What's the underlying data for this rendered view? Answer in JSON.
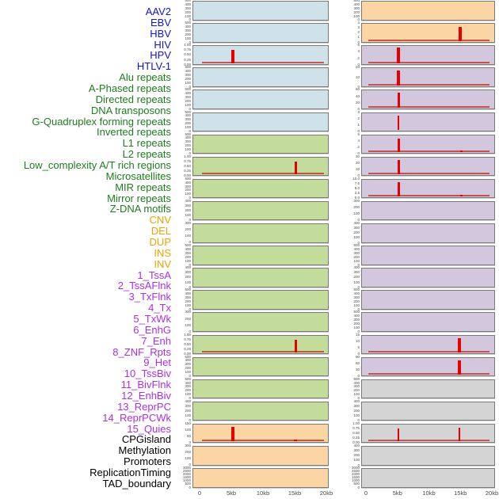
{
  "colors": {
    "panel_bg": {
      "virus": "#cfe2e9",
      "repeat": "#c3db9b",
      "sv": "#fcd5a5",
      "chromatin": "#d3c7de",
      "other": "#d4d4d4"
    },
    "label_text": {
      "virus": "#1414d6",
      "repeat": "#1e7d1e",
      "sv": "#efa300",
      "chromatin": "#aa2fe6",
      "other": "#000000"
    },
    "spike_red": "#e80000",
    "baseline_red": "#be3228",
    "panel_border": "#7a7a7a",
    "tick_text": "#4a4a4a"
  },
  "chart_data": {
    "type": "bar",
    "title": "",
    "xlabel": "",
    "ylabel": "",
    "x_range_kb": [
      0,
      20
    ],
    "x_ticks": [
      "0",
      "5kb",
      "10kb",
      "15kb",
      "20kb"
    ],
    "grid": false,
    "legend": "none",
    "layout": "22 rows x 2 columns, column-major; 44 feature labels stacked on the left",
    "columns": [
      {
        "panels": [
          {
            "label": "AAV2",
            "group": "virus",
            "yticks": [
              "500",
              "400",
              "300",
              "200",
              "100",
              "0"
            ],
            "spikes": [],
            "baseline": false
          },
          {
            "label": "EBV",
            "group": "virus",
            "yticks": [
              "500",
              "400",
              "300",
              "200",
              "100",
              "0"
            ],
            "spikes": [],
            "baseline": false
          },
          {
            "label": "HBV",
            "group": "virus",
            "yticks": [
              "1.00",
              "0.75",
              "0.50",
              "0.25",
              "0.00"
            ],
            "spikes": [
              {
                "kb": 5.2,
                "h": 0.8,
                "w": 4
              }
            ],
            "baseline": true
          },
          {
            "label": "HIV",
            "group": "virus",
            "yticks": [
              "500",
              "400",
              "300",
              "200",
              "100",
              "0"
            ],
            "spikes": [],
            "baseline": false
          },
          {
            "label": "HPV",
            "group": "virus",
            "yticks": [
              "500",
              "400",
              "300",
              "200",
              "100",
              "0"
            ],
            "spikes": [],
            "baseline": false
          },
          {
            "label": "HTLV-1",
            "group": "virus",
            "yticks": [
              "500",
              "400",
              "300",
              "200",
              "100",
              "0"
            ],
            "spikes": [],
            "baseline": false
          },
          {
            "label": "Alu repeats",
            "group": "repeat",
            "yticks": [
              "500",
              "400",
              "300",
              "200",
              "100",
              "0"
            ],
            "spikes": [],
            "baseline": false
          },
          {
            "label": "A-Phased repeats",
            "group": "repeat",
            "yticks": [
              "1.00",
              "0.75",
              "0.50",
              "0.25",
              "0.00"
            ],
            "spikes": [
              {
                "kb": 15.2,
                "h": 0.77,
                "w": 3
              }
            ],
            "baseline": true
          },
          {
            "label": "Directed repeats",
            "group": "repeat",
            "yticks": [
              "500",
              "400",
              "300",
              "200",
              "100",
              "0"
            ],
            "spikes": [],
            "baseline": false
          },
          {
            "label": "DNA transposons",
            "group": "repeat",
            "yticks": [
              "400",
              "300",
              "200",
              "100",
              "0"
            ],
            "spikes": [],
            "baseline": false
          },
          {
            "label": "G-Quadruplex forming repeats",
            "group": "repeat",
            "yticks": [
              "300",
              "200",
              "100",
              "0"
            ],
            "spikes": [],
            "baseline": false
          },
          {
            "label": "Inverted repeats",
            "group": "repeat",
            "yticks": [
              "500",
              "400",
              "300",
              "200",
              "100",
              "0"
            ],
            "spikes": [],
            "baseline": false
          },
          {
            "label": "L1 repeats",
            "group": "repeat",
            "yticks": [
              "400",
              "300",
              "200",
              "100",
              "0"
            ],
            "spikes": [],
            "baseline": false
          },
          {
            "label": "L2 repeats",
            "group": "repeat",
            "yticks": [
              "500",
              "400",
              "300",
              "200",
              "100",
              "0"
            ],
            "spikes": [],
            "baseline": false
          },
          {
            "label": "Low_complexity A/T rich regions",
            "group": "repeat",
            "yticks": [
              "300",
              "200",
              "100",
              "0"
            ],
            "spikes": [],
            "baseline": false
          },
          {
            "label": "Microsatellites",
            "group": "repeat",
            "yticks": [
              "1.00",
              "0.75",
              "0.50",
              "0.25",
              "0.00"
            ],
            "spikes": [
              {
                "kb": 15.2,
                "h": 0.8,
                "w": 3
              }
            ],
            "baseline": true
          },
          {
            "label": "MIR repeats",
            "group": "repeat",
            "yticks": [
              "500",
              "400",
              "300",
              "200",
              "100",
              "0"
            ],
            "spikes": [],
            "baseline": false
          },
          {
            "label": "Mirror repeats",
            "group": "repeat",
            "yticks": [
              "500",
              "400",
              "300",
              "200",
              "100",
              "0"
            ],
            "spikes": [],
            "baseline": false
          },
          {
            "label": "Z-DNA motifs",
            "group": "repeat",
            "yticks": [
              "400",
              "300",
              "200",
              "100",
              "0"
            ],
            "spikes": [],
            "baseline": false
          },
          {
            "label": "CNV",
            "group": "sv",
            "yticks": [
              "150",
              "100",
              "50",
              "0"
            ],
            "spikes": [
              {
                "kb": 5.2,
                "h": 0.88,
                "w": 4.5
              },
              {
                "kb": 15.2,
                "h": 0.14,
                "w": 4
              }
            ],
            "baseline": true
          },
          {
            "label": "DEL",
            "group": "sv",
            "yticks": [
              "300",
              "200",
              "100",
              "0"
            ],
            "spikes": [],
            "baseline": false
          },
          {
            "label": "DUP",
            "group": "sv",
            "yticks": [
              "3000",
              "2500",
              "2000",
              "1500",
              "1000",
              "500",
              "0"
            ],
            "spikes": [],
            "baseline": false
          }
        ]
      },
      {
        "panels": [
          {
            "label": "INS",
            "group": "sv",
            "yticks": [
              "500",
              "400",
              "300",
              "200",
              "100",
              "0"
            ],
            "spikes": [],
            "baseline": false
          },
          {
            "label": "INV",
            "group": "sv",
            "yticks": [
              "4",
              "3",
              "2",
              "1",
              "0"
            ],
            "spikes": [
              {
                "kb": 15.0,
                "h": 0.85,
                "w": 3.5
              }
            ],
            "baseline": true
          },
          {
            "label": "1_TssA",
            "group": "chromatin",
            "yticks": [
              "6",
              "4",
              "2",
              "0"
            ],
            "spikes": [
              {
                "kb": 5.1,
                "h": 0.96,
                "w": 4
              }
            ],
            "baseline": true
          },
          {
            "label": "2_TssAFlnk",
            "group": "chromatin",
            "yticks": [
              "20",
              "10",
              "0"
            ],
            "spikes": [
              {
                "kb": 5.1,
                "h": 0.92,
                "w": 4
              }
            ],
            "baseline": true
          },
          {
            "label": "3_TxFlnk",
            "group": "chromatin",
            "yticks": [
              "60",
              "40",
              "20",
              "0"
            ],
            "spikes": [
              {
                "kb": 5.1,
                "h": 0.9,
                "w": 3
              }
            ],
            "baseline": true
          },
          {
            "label": "4_Tx",
            "group": "chromatin",
            "yticks": [
              "3",
              "2",
              "1",
              "0"
            ],
            "spikes": [
              {
                "kb": 5.1,
                "h": 0.9,
                "w": 2
              }
            ],
            "baseline": false
          },
          {
            "label": "5_TxWk",
            "group": "chromatin",
            "yticks": [
              "6",
              "4",
              "2",
              "0"
            ],
            "spikes": [
              {
                "kb": 5.1,
                "h": 0.85,
                "w": 3
              },
              {
                "kb": 15.2,
                "h": 0.11,
                "w": 3
              }
            ],
            "baseline": true
          },
          {
            "label": "6_EnhG",
            "group": "chromatin",
            "yticks": [
              "30",
              "20",
              "10",
              "0"
            ],
            "spikes": [
              {
                "kb": 5.1,
                "h": 0.87,
                "w": 3
              }
            ],
            "baseline": true
          },
          {
            "label": "7_Enh",
            "group": "chromatin",
            "yticks": [
              "10.0",
              "7.5",
              "5.0",
              "2.5",
              "0.0"
            ],
            "spikes": [
              {
                "kb": 5.1,
                "h": 0.9,
                "w": 3
              },
              {
                "kb": 15.2,
                "h": 0.11,
                "w": 3
              }
            ],
            "baseline": true
          },
          {
            "label": "8_ZNF_Rpts",
            "group": "chromatin",
            "yticks": [
              "300",
              "200",
              "100",
              "0"
            ],
            "spikes": [],
            "baseline": false
          },
          {
            "label": "9_Het",
            "group": "chromatin",
            "yticks": [
              "400",
              "300",
              "200",
              "100",
              "0"
            ],
            "spikes": [],
            "baseline": false
          },
          {
            "label": "10_TssBiv",
            "group": "chromatin",
            "yticks": [
              "500",
              "400",
              "300",
              "200",
              "100",
              "0"
            ],
            "spikes": [],
            "baseline": false
          },
          {
            "label": "11_BivFlnk",
            "group": "chromatin",
            "yticks": [
              "400",
              "300",
              "200",
              "100",
              "0"
            ],
            "spikes": [],
            "baseline": false
          },
          {
            "label": "12_EnhBiv",
            "group": "chromatin",
            "yticks": [
              "500",
              "400",
              "300",
              "200",
              "100",
              "0"
            ],
            "spikes": [],
            "baseline": false
          },
          {
            "label": "13_ReprPC",
            "group": "chromatin",
            "yticks": [
              "500",
              "400",
              "300",
              "200",
              "100",
              "0"
            ],
            "spikes": [],
            "baseline": false
          },
          {
            "label": "14_ReprPCWk",
            "group": "chromatin",
            "yticks": [
              "15",
              "10",
              "5",
              "0"
            ],
            "spikes": [
              {
                "kb": 14.9,
                "h": 0.9,
                "w": 3.5
              }
            ],
            "baseline": true
          },
          {
            "label": "15_Quies",
            "group": "chromatin",
            "yticks": [
              "90",
              "60",
              "30",
              "0"
            ],
            "spikes": [
              {
                "kb": 14.9,
                "h": 0.9,
                "w": 3.5
              }
            ],
            "baseline": true
          },
          {
            "label": "CPGisland",
            "group": "other",
            "yticks": [
              "500",
              "400",
              "300",
              "200",
              "100",
              "0"
            ],
            "spikes": [],
            "baseline": false
          },
          {
            "label": "Methylation",
            "group": "other",
            "yticks": [
              "400",
              "300",
              "200",
              "100",
              "0"
            ],
            "spikes": [],
            "baseline": false
          },
          {
            "label": "Promoters",
            "group": "other",
            "yticks": [
              "1.00",
              "0.75",
              "0.50",
              "0.25",
              "0.00"
            ],
            "spikes": [
              {
                "kb": 5.1,
                "h": 0.78,
                "w": 2.5
              },
              {
                "kb": 14.9,
                "h": 0.84,
                "w": 2.5
              }
            ],
            "baseline": true
          },
          {
            "label": "ReplicationTiming",
            "group": "other",
            "yticks": [
              "400",
              "300",
              "200",
              "100",
              "0"
            ],
            "spikes": [],
            "baseline": false
          },
          {
            "label": "TAD_boundary",
            "group": "other",
            "yticks": [
              "3000",
              "2500",
              "2000",
              "1500",
              "1000",
              "500",
              "0"
            ],
            "spikes": [],
            "baseline": false
          }
        ]
      }
    ]
  }
}
